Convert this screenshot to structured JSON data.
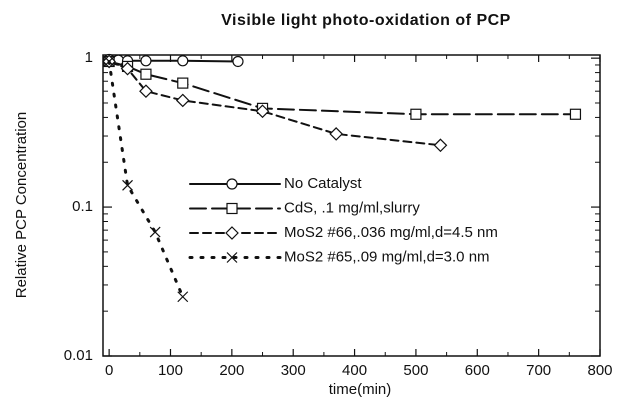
{
  "chart_data": {
    "type": "line",
    "title": "Visible light photo-oxidation of PCP",
    "xlabel": "time(min)",
    "ylabel": "Relative PCP Concentration",
    "log_y": true,
    "xlim": [
      -10,
      800
    ],
    "ylim": [
      0.01,
      1.05
    ],
    "xticks": [
      0,
      100,
      200,
      300,
      400,
      500,
      600,
      700,
      800
    ],
    "yticks": [
      0.01,
      0.1,
      1
    ],
    "series": [
      {
        "name": "No Catalyst",
        "color": "#111111",
        "marker": "circle",
        "linestyle": "solid",
        "x": [
          0,
          15,
          30,
          60,
          120,
          210
        ],
        "values": [
          0.98,
          0.97,
          0.96,
          0.96,
          0.96,
          0.95
        ]
      },
      {
        "name": "CdS, .1 mg/ml,slurry",
        "color": "#111111",
        "marker": "square",
        "linestyle": "longdash",
        "x": [
          0,
          30,
          60,
          120,
          250,
          500,
          760
        ],
        "values": [
          0.95,
          0.88,
          0.78,
          0.68,
          0.46,
          0.42,
          0.42
        ]
      },
      {
        "name": "MoS2 #66,.036 mg/ml,d=4.5 nm",
        "color": "#111111",
        "marker": "diamond",
        "linestyle": "dash",
        "x": [
          0,
          30,
          60,
          120,
          250,
          370,
          540
        ],
        "values": [
          0.95,
          0.85,
          0.6,
          0.52,
          0.44,
          0.31,
          0.26
        ]
      },
      {
        "name": "MoS2 #65,.09 mg/ml,d=3.0 nm",
        "color": "#111111",
        "marker": "cross",
        "linestyle": "dot",
        "x": [
          0,
          30,
          75,
          120
        ],
        "values": [
          0.95,
          0.14,
          0.068,
          0.025
        ]
      }
    ]
  }
}
